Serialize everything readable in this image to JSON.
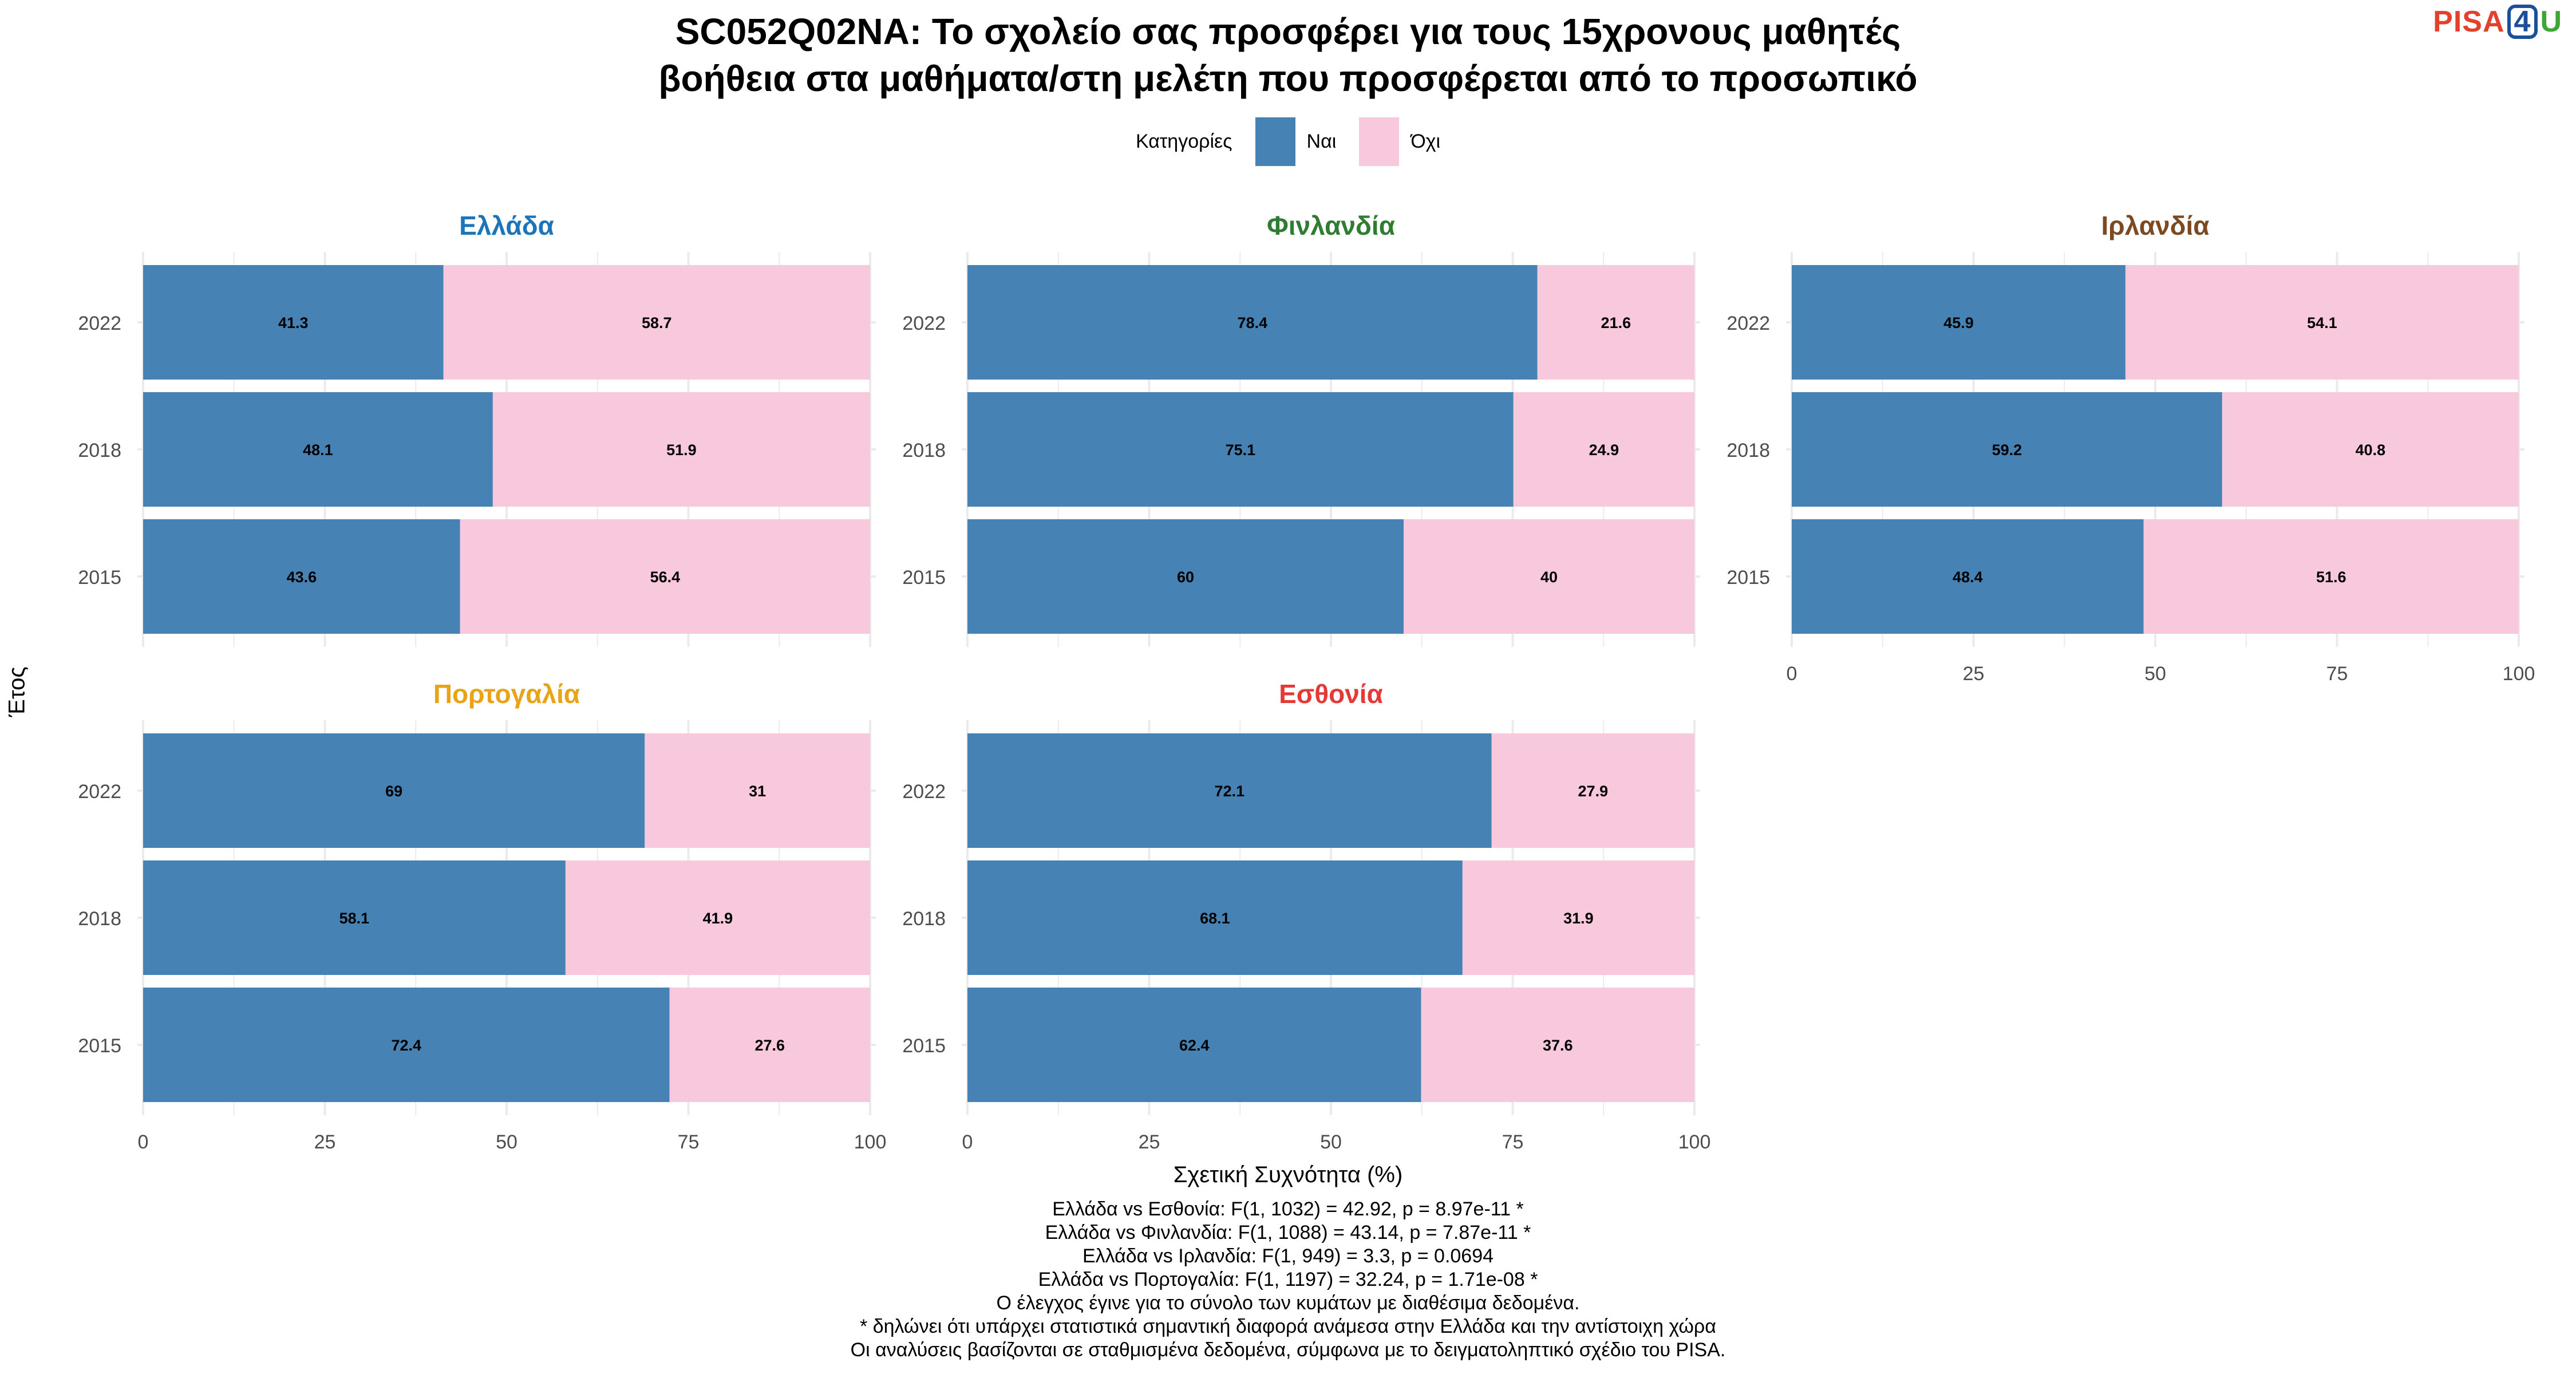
{
  "title_line1": "SC052Q02NA: Το σχολείο σας προσφέρει για τους 15χρονους μαθητές",
  "title_line2": "βοήθεια στα μαθήματα/στη μελέτη που προσφέρεται από το προσωπικό",
  "logo": {
    "part1": "PISA",
    "part2": "4",
    "part3": "U"
  },
  "legend": {
    "title": "Κατηγορίες",
    "items": [
      {
        "label": "Ναι",
        "color": "#4682b4"
      },
      {
        "label": "Όχι",
        "color": "#f8c8dc"
      }
    ]
  },
  "ylabel": "Έτος",
  "xlabel": "Σχετική Συχνότητα (%)",
  "notes": [
    "Ελλάδα vs Εσθονία: F(1, 1032) = 42.92, p = 8.97e-11 *",
    "Ελλάδα vs Φινλανδία: F(1, 1088) = 43.14, p = 7.87e-11 *",
    "Ελλάδα vs Ιρλανδία: F(1, 949) = 3.3, p = 0.0694",
    "Ελλάδα vs Πορτογαλία: F(1, 1197) = 32.24, p = 1.71e-08 *",
    "Ο έλεγχος έγινε για το σύνολο των κυμάτων με διαθέσιμα δεδομένα.",
    "* δηλώνει ότι υπάρχει στατιστικά σημαντική διαφορά ανάμεσα στην Ελλάδα και την αντίστοιχη χώρα",
    "Οι αναλύσεις βασίζονται σε σταθμισμένα δεδομένα, σύμφωνα με το δειγματοληπτικό σχέδιο του PISA."
  ],
  "chart_data": {
    "type": "bar",
    "orientation": "horizontal",
    "stacked": true,
    "categories": [
      "2022",
      "2018",
      "2015"
    ],
    "xlim": [
      0,
      100
    ],
    "xticks": [
      "0",
      "25",
      "50",
      "75",
      "100"
    ],
    "series_names": [
      "Ναι",
      "Όχι"
    ],
    "series_colors": [
      "#4682b4",
      "#f8c8dc"
    ],
    "panels": [
      {
        "name": "Ελλάδα",
        "title_color": "#1b75bb",
        "values": {
          "Ναι": [
            41.3,
            48.1,
            43.6
          ],
          "Όχι": [
            58.7,
            51.9,
            56.4
          ]
        },
        "labels": {
          "Ναι": [
            "41.3",
            "48.1",
            "43.6"
          ],
          "Όχι": [
            "58.7",
            "51.9",
            "56.4"
          ]
        }
      },
      {
        "name": "Φινλανδία",
        "title_color": "#2e7d32",
        "values": {
          "Ναι": [
            78.4,
            75.1,
            60
          ],
          "Όχι": [
            21.6,
            24.9,
            40
          ]
        },
        "labels": {
          "Ναι": [
            "78.4",
            "75.1",
            "60"
          ],
          "Όχι": [
            "21.6",
            "24.9",
            "40"
          ]
        }
      },
      {
        "name": "Ιρλανδία",
        "title_color": "#7b4a22",
        "values": {
          "Ναι": [
            45.9,
            59.2,
            48.4
          ],
          "Όχι": [
            54.1,
            40.8,
            51.6
          ]
        },
        "labels": {
          "Ναι": [
            "45.9",
            "59.2",
            "48.4"
          ],
          "Όχι": [
            "54.1",
            "40.8",
            "51.6"
          ]
        }
      },
      {
        "name": "Πορτογαλία",
        "title_color": "#e8a317",
        "values": {
          "Ναι": [
            69,
            58.1,
            72.4
          ],
          "Όχι": [
            31,
            41.9,
            27.6
          ]
        },
        "labels": {
          "Ναι": [
            "69",
            "58.1",
            "72.4"
          ],
          "Όχι": [
            "31",
            "41.9",
            "27.6"
          ]
        }
      },
      {
        "name": "Εσθονία",
        "title_color": "#e53935",
        "values": {
          "Ναι": [
            72.1,
            68.1,
            62.4
          ],
          "Όχι": [
            27.9,
            31.9,
            37.6
          ]
        },
        "labels": {
          "Ναι": [
            "72.1",
            "68.1",
            "62.4"
          ],
          "Όχι": [
            "27.9",
            "31.9",
            "37.6"
          ]
        }
      }
    ]
  }
}
